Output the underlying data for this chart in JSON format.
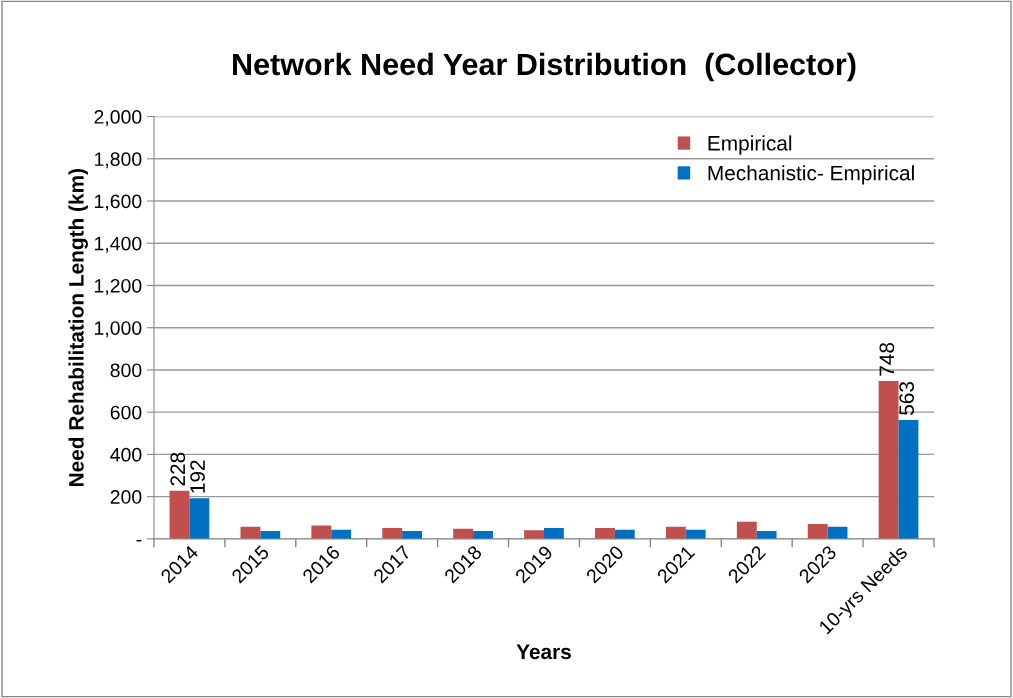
{
  "chart_data": {
    "type": "bar",
    "title": "Network Need Year Distribution  (Collector)",
    "xlabel": "Years",
    "ylabel": "Need Rehabilitation Length (km)",
    "categories": [
      "2014",
      "2015",
      "2016",
      "2017",
      "2018",
      "2019",
      "2020",
      "2021",
      "2022",
      "2023",
      "10-yrs Needs"
    ],
    "series": [
      {
        "name": "Empirical",
        "color": "#c0504d",
        "values": [
          228,
          57,
          63,
          52,
          48,
          41,
          52,
          57,
          81,
          70,
          748
        ],
        "value_labels": [
          "228",
          null,
          null,
          null,
          null,
          null,
          null,
          null,
          null,
          null,
          "748"
        ]
      },
      {
        "name": "Mechanistic- Empirical",
        "color": "#0070c0",
        "values": [
          192,
          37,
          43,
          37,
          37,
          52,
          43,
          43,
          37,
          57,
          563
        ],
        "value_labels": [
          "192",
          null,
          null,
          null,
          null,
          null,
          null,
          null,
          null,
          null,
          "563"
        ]
      }
    ],
    "ylim": [
      0,
      2000
    ],
    "yticks": [
      {
        "value": 0,
        "label": "-"
      },
      {
        "value": 200,
        "label": "200"
      },
      {
        "value": 400,
        "label": "400"
      },
      {
        "value": 600,
        "label": "600"
      },
      {
        "value": 800,
        "label": "800"
      },
      {
        "value": 1000,
        "label": "1,000"
      },
      {
        "value": 1200,
        "label": "1,200"
      },
      {
        "value": 1400,
        "label": "1,400"
      },
      {
        "value": 1600,
        "label": "1,600"
      },
      {
        "value": 1800,
        "label": "1,800"
      },
      {
        "value": 2000,
        "label": "2,000"
      }
    ],
    "grid": "y",
    "legend": "top right"
  }
}
